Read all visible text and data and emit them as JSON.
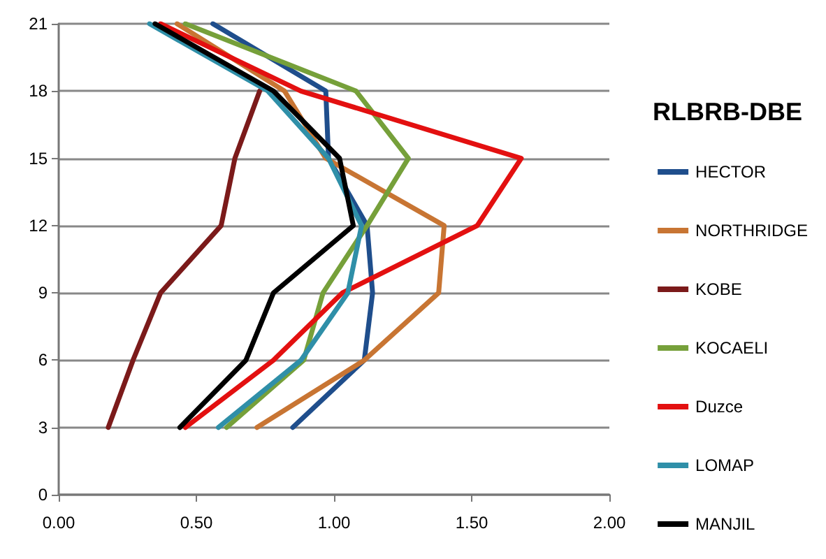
{
  "chart_data": {
    "type": "line",
    "title": "RLBRB-DBE",
    "xlim": [
      0,
      2
    ],
    "ylim": [
      0,
      21
    ],
    "xticks": [
      {
        "value": 0,
        "label": "0.00"
      },
      {
        "value": 0.5,
        "label": "0.50"
      },
      {
        "value": 1,
        "label": "1.00"
      },
      {
        "value": 1.5,
        "label": "1.50"
      },
      {
        "value": 2,
        "label": "2.00"
      }
    ],
    "yticks": [
      0,
      3,
      6,
      9,
      12,
      15,
      18,
      21
    ],
    "grid": "y",
    "legend": "right",
    "marker": "none",
    "line_style": "solid",
    "series": [
      {
        "name": "HECTOR",
        "color": "#1f4e8c",
        "x": [
          0.85,
          1.11,
          1.14,
          1.12,
          0.98,
          0.97,
          0.56
        ],
        "values": [
          3,
          6,
          9,
          12,
          15,
          18,
          21
        ]
      },
      {
        "name": "NORTHRIDGE",
        "color": "#c87533",
        "x": [
          0.72,
          1.11,
          1.38,
          1.4,
          0.97,
          0.82,
          0.43
        ],
        "values": [
          3,
          6,
          9,
          12,
          15,
          18,
          21
        ]
      },
      {
        "name": "KOBE",
        "color": "#7b1a1a",
        "x": [
          0.18,
          0.27,
          0.37,
          0.59,
          0.64,
          0.73
        ],
        "values": [
          3,
          6,
          9,
          12,
          15,
          18
        ]
      },
      {
        "name": "KOCAELI",
        "color": "#76a03a",
        "x": [
          0.61,
          0.89,
          0.96,
          1.12,
          1.27,
          1.08,
          0.46
        ],
        "values": [
          3,
          6,
          9,
          12,
          15,
          18,
          21
        ]
      },
      {
        "name": "Duzce",
        "color": "#e31010",
        "x": [
          0.46,
          0.78,
          1.03,
          1.52,
          1.68,
          0.88,
          0.37
        ],
        "values": [
          3,
          6,
          9,
          12,
          15,
          18,
          21
        ]
      },
      {
        "name": "LOMAP",
        "color": "#2f8fa8",
        "x": [
          0.58,
          0.88,
          1.05,
          1.1,
          0.98,
          0.76,
          0.33
        ],
        "values": [
          3,
          6,
          9,
          12,
          15,
          18,
          21
        ]
      },
      {
        "name": "MANJIL",
        "color": "#000000",
        "x": [
          0.44,
          0.68,
          0.78,
          1.07,
          1.02,
          0.78,
          0.35
        ],
        "values": [
          3,
          6,
          9,
          12,
          15,
          18,
          21
        ]
      }
    ]
  }
}
